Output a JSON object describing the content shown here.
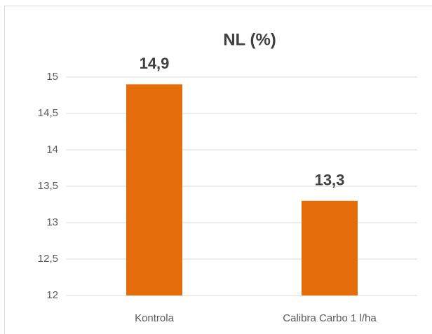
{
  "chart_data": {
    "type": "bar",
    "title": "NL (%)",
    "categories": [
      "Kontrola",
      "Calibra Carbo 1 l/ha"
    ],
    "values": [
      14.9,
      13.3
    ],
    "value_labels": [
      "14,9",
      "13,3"
    ],
    "color": "#e46c0a",
    "ylim": [
      12,
      15
    ],
    "yticks": [
      12,
      {
        "value": 12.5,
        "label": "12,5"
      },
      13,
      {
        "value": 13.5,
        "label": "13,5"
      },
      14,
      {
        "value": 14.5,
        "label": "14,5"
      },
      15
    ],
    "grid": true
  }
}
